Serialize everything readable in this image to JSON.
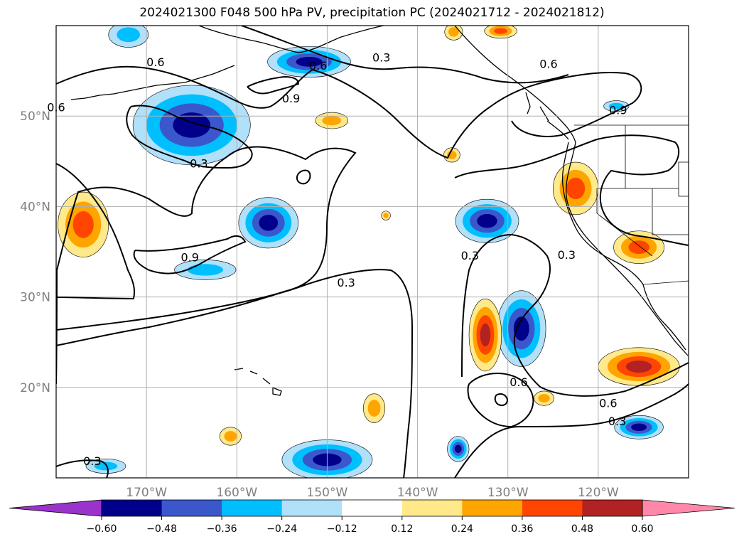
{
  "chart_data": {
    "type": "map-contour",
    "title": "2024021300 F048 500 hPa PV, precipitation PC (2024021712 - 2024021812)",
    "lon_range": [
      -180,
      -110
    ],
    "lat_range": [
      10,
      60
    ],
    "x_ticks": [
      -170,
      -160,
      -150,
      -140,
      -130,
      -120
    ],
    "x_tick_labels": [
      "170°W",
      "160°W",
      "150°W",
      "140°W",
      "130°W",
      "120°W"
    ],
    "y_ticks": [
      20,
      30,
      40,
      50
    ],
    "y_tick_labels": [
      "20°N",
      "30°N",
      "40°N",
      "50°N"
    ],
    "grid": true,
    "colorbar": {
      "orientation": "horizontal",
      "extend": "both",
      "levels": [
        -0.6,
        -0.48,
        -0.36,
        -0.24,
        -0.12,
        0.12,
        0.24,
        0.36,
        0.48,
        0.6
      ],
      "tick_labels": [
        "−0.60",
        "−0.48",
        "−0.36",
        "−0.24",
        "−0.12",
        "0.12",
        "0.24",
        "0.36",
        "0.48",
        "0.60"
      ],
      "colors": [
        "#9933cc",
        "#00008b",
        "#3a58cc",
        "#00bfff",
        "#b0e0fa",
        "#ffffff",
        "#ffe98a",
        "#ffa500",
        "#ff4500",
        "#b22222",
        "#ff88aa"
      ]
    },
    "contour_levels": [
      0.3,
      0.6,
      0.9
    ],
    "contour_labels": [
      {
        "text": "0.6",
        "lon": -180,
        "lat": 51
      },
      {
        "text": "0.6",
        "lon": -169,
        "lat": 56
      },
      {
        "text": "0.6",
        "lon": -151,
        "lat": 55.6
      },
      {
        "text": "0.3",
        "lon": -144,
        "lat": 56.5
      },
      {
        "text": "0.6",
        "lon": -125.5,
        "lat": 55.8
      },
      {
        "text": "0.9",
        "lon": -154,
        "lat": 52
      },
      {
        "text": "0.9",
        "lon": -117.8,
        "lat": 50.7
      },
      {
        "text": "0.3",
        "lon": -164.2,
        "lat": 44.8
      },
      {
        "text": "0.9",
        "lon": -165.2,
        "lat": 34.4
      },
      {
        "text": "0.3",
        "lon": -147.9,
        "lat": 31.6
      },
      {
        "text": "0.3",
        "lon": -134.2,
        "lat": 34.6
      },
      {
        "text": "0.3",
        "lon": -123.5,
        "lat": 34.7
      },
      {
        "text": "0.6",
        "lon": -128.8,
        "lat": 20.6
      },
      {
        "text": "0.6",
        "lon": -118.9,
        "lat": 18.3
      },
      {
        "text": "0.3",
        "lon": -117.9,
        "lat": 16.3
      },
      {
        "text": "0.3",
        "lon": -176,
        "lat": 11.9
      }
    ],
    "precip_pc_features": [
      {
        "lon": -165,
        "lat": 49,
        "rx": 6.5,
        "ry": 4.4,
        "value": -0.48
      },
      {
        "lon": -152,
        "lat": 56,
        "rx": 4.6,
        "ry": 1.7,
        "value": -0.48
      },
      {
        "lon": -156.5,
        "lat": 38.2,
        "rx": 3.3,
        "ry": 2.8,
        "value": -0.48
      },
      {
        "lon": -163.5,
        "lat": 33,
        "rx": 3.4,
        "ry": 1.1,
        "value": -0.24
      },
      {
        "lon": -132.3,
        "lat": 38.4,
        "rx": 3.5,
        "ry": 2.4,
        "value": -0.48
      },
      {
        "lon": -128.5,
        "lat": 26.5,
        "rx": 2.7,
        "ry": 4.2,
        "value": -0.48
      },
      {
        "lon": -150,
        "lat": 12,
        "rx": 5,
        "ry": 2.2,
        "value": -0.48
      },
      {
        "lon": -115.5,
        "lat": 15.6,
        "rx": 2.7,
        "ry": 1.3,
        "value": -0.48
      },
      {
        "lon": -135.5,
        "lat": 13.2,
        "rx": 1.2,
        "ry": 1.4,
        "value": -0.48
      },
      {
        "lon": -174.5,
        "lat": 11.3,
        "rx": 2.2,
        "ry": 0.8,
        "value": -0.24
      },
      {
        "lon": -172,
        "lat": 59,
        "rx": 2.2,
        "ry": 1.4,
        "value": -0.24
      },
      {
        "lon": -118,
        "lat": 51.1,
        "rx": 1.4,
        "ry": 0.6,
        "value": -0.24
      },
      {
        "lon": -177,
        "lat": 38,
        "rx": 2.8,
        "ry": 3.6,
        "value": 0.36
      },
      {
        "lon": -122.5,
        "lat": 42,
        "rx": 2.5,
        "ry": 2.9,
        "value": 0.36
      },
      {
        "lon": -115.5,
        "lat": 35.5,
        "rx": 2.8,
        "ry": 1.8,
        "value": 0.36
      },
      {
        "lon": -132.5,
        "lat": 25.8,
        "rx": 1.8,
        "ry": 4,
        "value": 0.48
      },
      {
        "lon": -115.5,
        "lat": 22.3,
        "rx": 4.5,
        "ry": 2.1,
        "value": 0.48
      },
      {
        "lon": -144.8,
        "lat": 17.7,
        "rx": 1.2,
        "ry": 1.6,
        "value": 0.24
      },
      {
        "lon": -160.7,
        "lat": 14.6,
        "rx": 1.2,
        "ry": 1.0,
        "value": 0.24
      },
      {
        "lon": -126,
        "lat": 18.8,
        "rx": 1.1,
        "ry": 0.8,
        "value": 0.24
      },
      {
        "lon": -149.5,
        "lat": 49.5,
        "rx": 1.8,
        "ry": 0.9,
        "value": 0.24
      },
      {
        "lon": -130.8,
        "lat": 59.4,
        "rx": 1.8,
        "ry": 0.8,
        "value": 0.36
      },
      {
        "lon": -136,
        "lat": 59.3,
        "rx": 1.0,
        "ry": 0.9,
        "value": 0.24
      },
      {
        "lon": -136.2,
        "lat": 45.7,
        "rx": 0.9,
        "ry": 0.8,
        "value": 0.24
      },
      {
        "lon": -143.5,
        "lat": 39,
        "rx": 0.5,
        "ry": 0.5,
        "value": 0.24
      }
    ]
  }
}
